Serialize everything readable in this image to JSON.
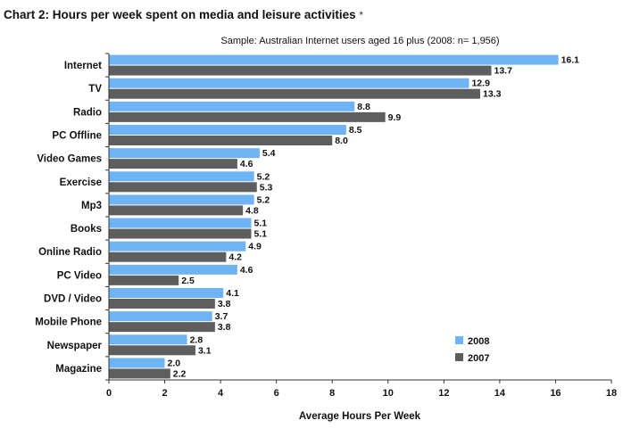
{
  "chart_data": {
    "type": "bar",
    "orientation": "horizontal",
    "title": "Chart 2: Hours per week spent on media and leisure activities",
    "title_marker": "*",
    "subtitle": "Sample: Australian Internet users aged 16 plus (2008: n= 1,956)",
    "xlabel": "Average Hours Per Week",
    "ylabel": "",
    "xlim": [
      0,
      18
    ],
    "xticks": [
      0,
      2,
      4,
      6,
      8,
      10,
      12,
      14,
      16,
      18
    ],
    "grid": false,
    "legend_position": "bottom-right",
    "categories": [
      "Internet",
      "TV",
      "Radio",
      "PC Offline",
      "Video Games",
      "Exercise",
      "Mp3",
      "Books",
      "Online Radio",
      "PC Video",
      "DVD / Video",
      "Mobile Phone",
      "Newspaper",
      "Magazine"
    ],
    "series": [
      {
        "name": "2008",
        "color": "#6EB4F5",
        "values": [
          16.1,
          12.9,
          8.8,
          8.5,
          5.4,
          5.2,
          5.2,
          5.1,
          4.9,
          4.6,
          4.1,
          3.7,
          2.8,
          2.0
        ]
      },
      {
        "name": "2007",
        "color": "#5E5E5E",
        "values": [
          13.7,
          13.3,
          9.9,
          8.0,
          4.6,
          5.3,
          4.8,
          5.1,
          4.2,
          2.5,
          3.8,
          3.8,
          3.1,
          2.2
        ]
      }
    ]
  }
}
